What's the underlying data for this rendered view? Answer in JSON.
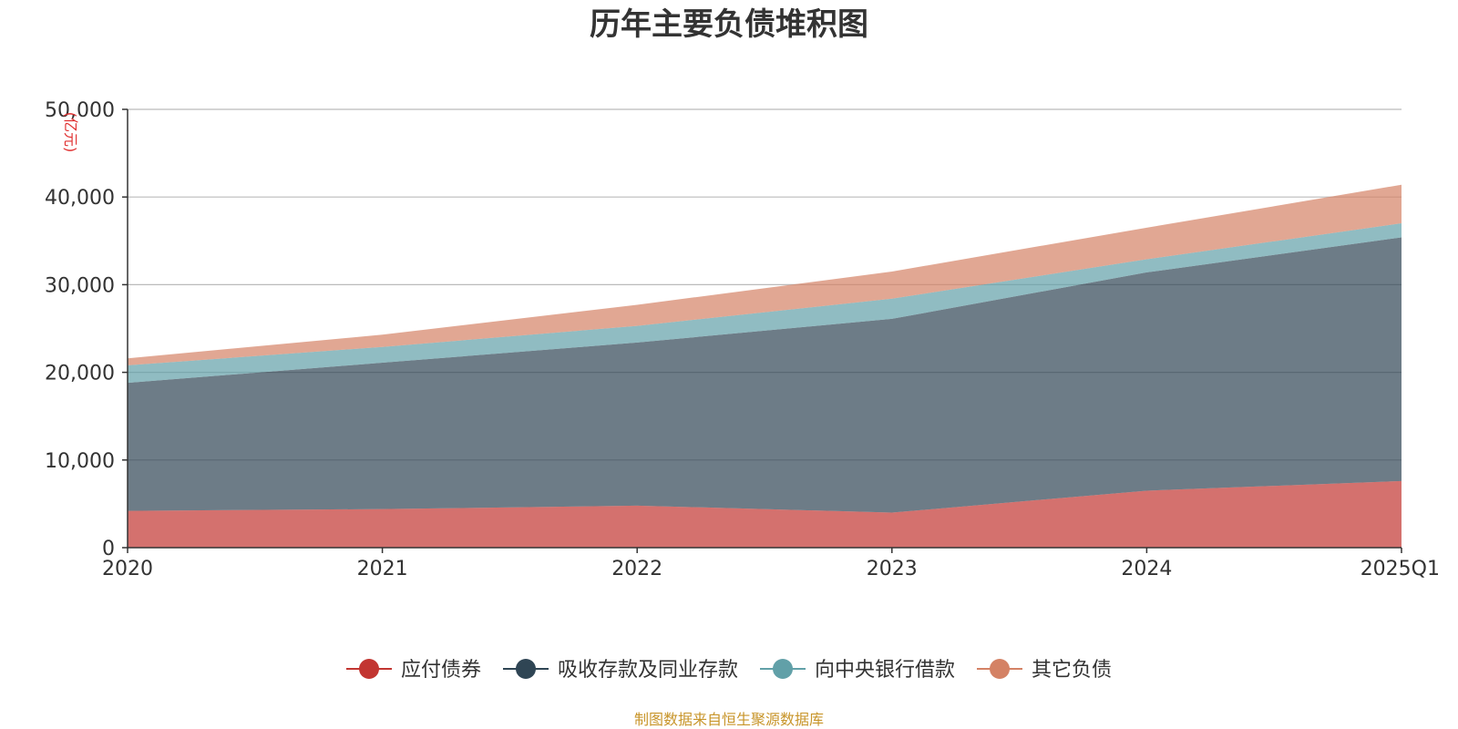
{
  "chart_data": {
    "type": "area",
    "stacked": true,
    "title": "历年主要负债堆积图",
    "unit": "(亿元)",
    "source": "制图数据来自恒生聚源数据库",
    "categories": [
      "2020",
      "2021",
      "2022",
      "2023",
      "2024",
      "2025Q1"
    ],
    "ylim": [
      0,
      50000
    ],
    "yticks": [
      0,
      10000,
      20000,
      30000,
      40000,
      50000
    ],
    "ytick_labels": [
      "0",
      "10,000",
      "20,000",
      "30,000",
      "40,000",
      "50,000"
    ],
    "grid": true,
    "legend_position": "bottom",
    "series": [
      {
        "name": "应付债券",
        "color": "#c23531",
        "values": [
          4200,
          4400,
          4800,
          4000,
          6500,
          7600
        ]
      },
      {
        "name": "吸收存款及同业存款",
        "color": "#2f4554",
        "values": [
          14600,
          16700,
          18600,
          22100,
          24900,
          27800
        ]
      },
      {
        "name": "向中央银行借款",
        "color": "#61a0a8",
        "values": [
          2000,
          1800,
          1900,
          2300,
          1500,
          1600
        ]
      },
      {
        "name": "其它负债",
        "color": "#d48265",
        "values": [
          800,
          1400,
          2400,
          3100,
          3600,
          4400
        ]
      }
    ]
  }
}
